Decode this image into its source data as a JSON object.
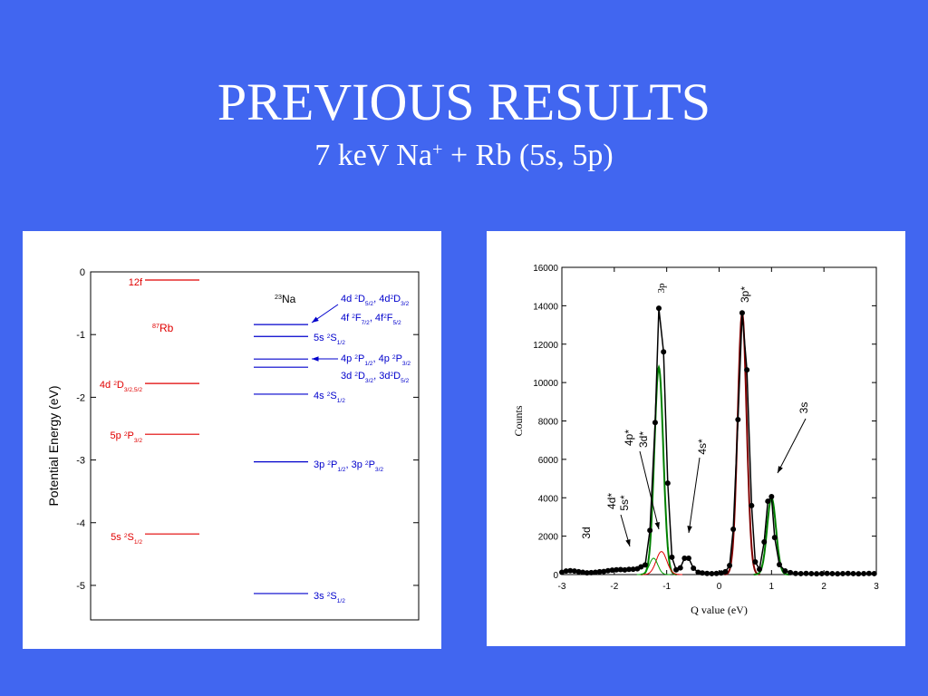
{
  "slide": {
    "title": "PREVIOUS RESULTS",
    "subtitle": [
      {
        "text": "7 keV Na"
      },
      {
        "sup": "+"
      },
      {
        "text": " + Rb (5s, 5p)"
      }
    ]
  },
  "chart_data": [
    {
      "type": "levels",
      "ylabel": "Potential Energy (eV)",
      "ylim": [
        -5.55,
        0
      ],
      "yticks": [
        0,
        -1,
        -2,
        -3,
        -4,
        -5
      ],
      "groups": [
        {
          "name": [
            {
              "sup": "87"
            },
            {
              "text": "Rb"
            }
          ],
          "color": "#e00000",
          "levels": [
            {
              "value": -0.13,
              "labels": [
                [
                  {
                    "text": "12f"
                  }
                ]
              ]
            },
            {
              "value": -1.78,
              "labels": [
                [
                  {
                    "text": "4d "
                  },
                  {
                    "sup": "2"
                  },
                  {
                    "text": "D"
                  },
                  {
                    "sub": "3/2,5/2"
                  }
                ]
              ]
            },
            {
              "value": -2.59,
              "labels": [
                [
                  {
                    "text": "5p "
                  },
                  {
                    "sup": "2"
                  },
                  {
                    "text": "P"
                  },
                  {
                    "sub": "3/2"
                  }
                ]
              ]
            },
            {
              "value": -4.18,
              "labels": [
                [
                  {
                    "text": "5s "
                  },
                  {
                    "sup": "2"
                  },
                  {
                    "text": "S"
                  },
                  {
                    "sub": "1/2"
                  }
                ]
              ]
            }
          ]
        },
        {
          "name": [
            {
              "sup": "23"
            },
            {
              "text": "Na"
            }
          ],
          "color": "#0000cc",
          "levels": [
            {
              "value": -0.84,
              "labels": [
                [
                  {
                    "text": "4d "
                  },
                  {
                    "sup": "2"
                  },
                  {
                    "text": "D"
                  },
                  {
                    "sub": "5/2"
                  },
                  {
                    "text": ", 4d"
                  },
                  {
                    "sup": "2"
                  },
                  {
                    "text": "D"
                  },
                  {
                    "sub": "3/2"
                  }
                ],
                [
                  {
                    "text": "4f "
                  },
                  {
                    "sup": "2"
                  },
                  {
                    "text": "F"
                  },
                  {
                    "sub": "7/2"
                  },
                  {
                    "text": ", 4f"
                  },
                  {
                    "sup": "2"
                  },
                  {
                    "text": "F"
                  },
                  {
                    "sub": "5/2"
                  }
                ]
              ]
            },
            {
              "value": -1.03,
              "labels": [
                [
                  {
                    "text": "5s "
                  },
                  {
                    "sup": "2"
                  },
                  {
                    "text": "S"
                  },
                  {
                    "sub": "1/2"
                  }
                ]
              ]
            },
            {
              "value": -1.39,
              "labels": [
                [
                  {
                    "text": "4p "
                  },
                  {
                    "sup": "2"
                  },
                  {
                    "text": "P"
                  },
                  {
                    "sub": "1/2"
                  },
                  {
                    "text": ", 4p "
                  },
                  {
                    "sup": "2"
                  },
                  {
                    "text": "P"
                  },
                  {
                    "sub": "3/2"
                  }
                ]
              ]
            },
            {
              "value": -1.52,
              "labels": [
                [
                  {
                    "text": "3d "
                  },
                  {
                    "sup": "2"
                  },
                  {
                    "text": "D"
                  },
                  {
                    "sub": "3/2"
                  },
                  {
                    "text": ", 3d"
                  },
                  {
                    "sup": "2"
                  },
                  {
                    "text": "D"
                  },
                  {
                    "sub": "5/2"
                  }
                ]
              ]
            },
            {
              "value": -1.95,
              "labels": [
                [
                  {
                    "text": "4s "
                  },
                  {
                    "sup": "2"
                  },
                  {
                    "text": "S"
                  },
                  {
                    "sub": "1/2"
                  }
                ]
              ]
            },
            {
              "value": -3.03,
              "labels": [
                [
                  {
                    "text": "3p "
                  },
                  {
                    "sup": "2"
                  },
                  {
                    "text": "P"
                  },
                  {
                    "sub": "1/2"
                  },
                  {
                    "text": ", 3p "
                  },
                  {
                    "sup": "2"
                  },
                  {
                    "text": "P"
                  },
                  {
                    "sub": "3/2"
                  }
                ]
              ]
            },
            {
              "value": -5.13,
              "labels": [
                [
                  {
                    "text": "3s "
                  },
                  {
                    "sup": "2"
                  },
                  {
                    "text": "S"
                  },
                  {
                    "sub": "1/2"
                  }
                ]
              ]
            }
          ]
        }
      ]
    },
    {
      "type": "scatter",
      "xlabel": "Q value (eV)",
      "ylabel": "Counts",
      "xlim": [
        -3,
        3
      ],
      "ylim": [
        0,
        16000
      ],
      "xticks": [
        -3,
        -2,
        -1,
        0,
        1,
        2,
        3
      ],
      "yticks": [
        0,
        2000,
        4000,
        6000,
        8000,
        10000,
        12000,
        14000,
        16000
      ],
      "series": [
        {
          "color": "#000000",
          "x": [
            -3.0,
            -2.92,
            -2.84,
            -2.76,
            -2.68,
            -2.6,
            -2.52,
            -2.44,
            -2.36,
            -2.28,
            -2.2,
            -2.12,
            -2.04,
            -1.96,
            -1.88,
            -1.8,
            -1.72,
            -1.64,
            -1.56,
            -1.49,
            -1.41,
            -1.32,
            -1.22,
            -1.15,
            -1.06,
            -0.98,
            -0.9,
            -0.82,
            -0.74,
            -0.66,
            -0.58,
            -0.49,
            -0.4,
            -0.32,
            -0.23,
            -0.14,
            -0.05,
            0.04,
            0.12,
            0.2,
            0.27,
            0.36,
            0.44,
            0.53,
            0.62,
            0.69,
            0.77,
            0.86,
            0.93,
            1.0,
            1.06,
            1.15,
            1.26,
            1.36,
            1.46,
            1.56,
            1.66,
            1.76,
            1.86,
            1.96,
            2.06,
            2.16,
            2.26,
            2.36,
            2.46,
            2.56,
            2.66,
            2.76,
            2.86,
            2.96
          ],
          "values": [
            120,
            180,
            200,
            180,
            150,
            120,
            90,
            100,
            120,
            150,
            160,
            200,
            230,
            250,
            260,
            240,
            270,
            280,
            300,
            400,
            500,
            2300,
            7920,
            13870,
            11600,
            4760,
            900,
            250,
            350,
            850,
            850,
            330,
            120,
            80,
            60,
            50,
            60,
            80,
            150,
            470,
            2360,
            8070,
            13630,
            10660,
            3590,
            660,
            280,
            1700,
            3820,
            4060,
            1930,
            520,
            190,
            100,
            60,
            50,
            60,
            50,
            40,
            50,
            60,
            50,
            40,
            50,
            60,
            50,
            40,
            50,
            60,
            50
          ]
        }
      ],
      "fits": [
        {
          "color": "#008000",
          "center": -1.15,
          "height": 10800,
          "width": 0.085
        },
        {
          "color": "#e00000",
          "center": -1.1,
          "height": 1200,
          "width": 0.1
        },
        {
          "color": "#00a000",
          "center": -1.25,
          "height": 850,
          "width": 0.08
        },
        {
          "color": "#800000",
          "center": 0.44,
          "height": 13600,
          "width": 0.085
        },
        {
          "color": "#008000",
          "center": 1.0,
          "height": 4000,
          "width": 0.085
        }
      ],
      "annotations": [
        {
          "text": "3p"
        },
        {
          "text": "3p*"
        },
        {
          "text": "3s"
        },
        {
          "text": "4p*"
        },
        {
          "text": "3d*"
        },
        {
          "text": "4s*"
        },
        {
          "text": "4d*"
        },
        {
          "text": "5s*"
        },
        {
          "text": "3d"
        }
      ]
    }
  ]
}
